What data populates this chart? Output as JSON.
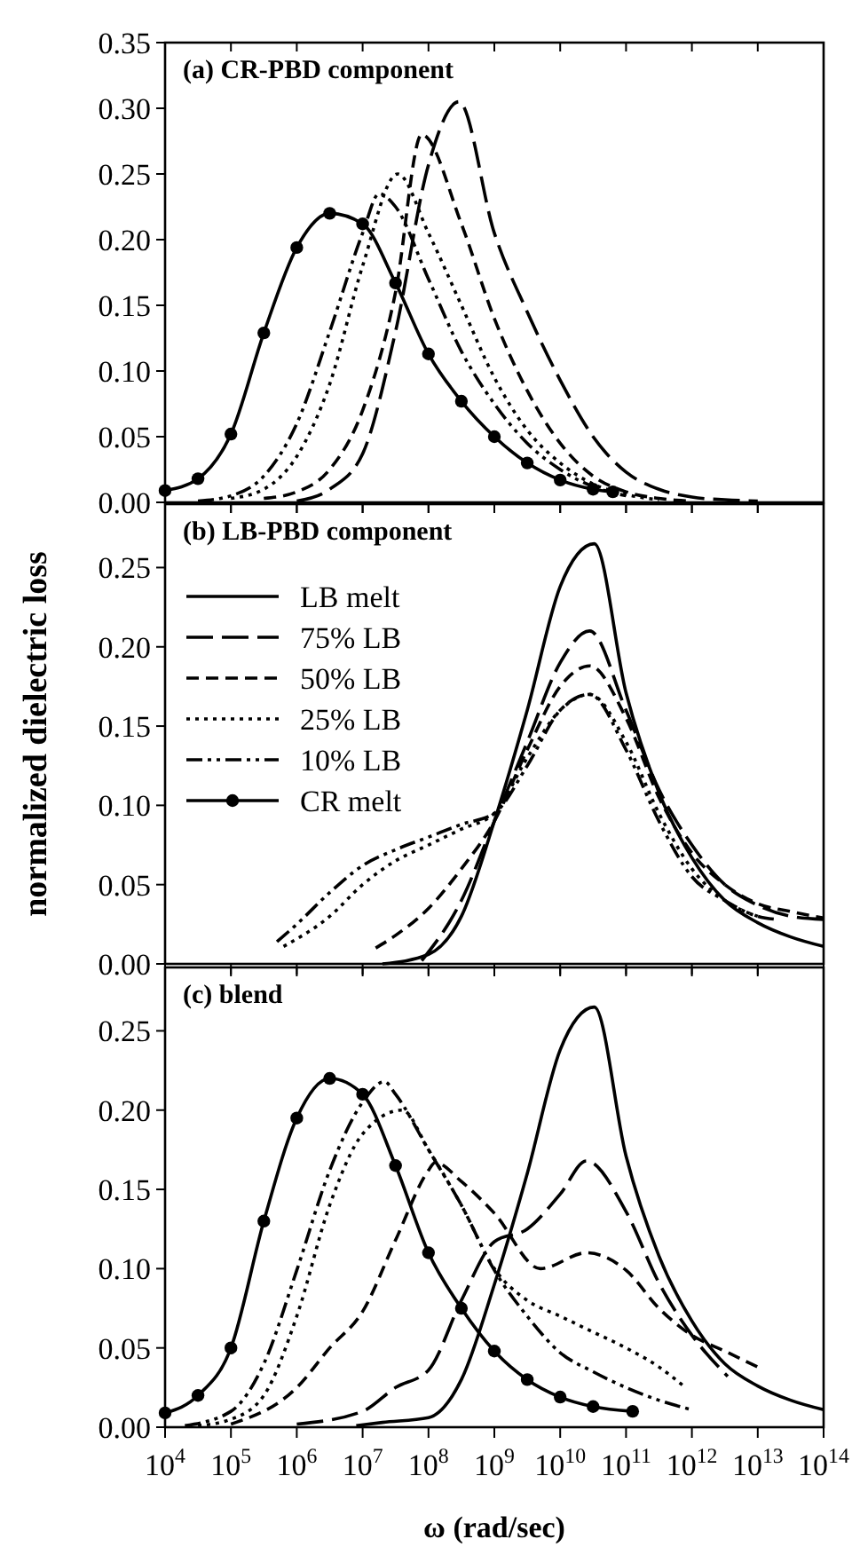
{
  "chart_data": [
    {
      "type": "line",
      "title": "(a) CR-PBD component",
      "log": "x",
      "xlim": [
        10000.0,
        100000000000000.0
      ],
      "ylim": [
        0,
        0.35
      ],
      "xticks": [
        {
          "value": 10000.0,
          "label": null
        },
        {
          "value": 100000.0,
          "label": null
        },
        {
          "value": 1000000.0,
          "label": null
        },
        {
          "value": 10000000.0,
          "label": null
        },
        {
          "value": 100000000.0,
          "label": null
        },
        {
          "value": 1000000000.0,
          "label": null
        },
        {
          "value": 10000000000.0,
          "label": null
        },
        {
          "value": 100000000000.0,
          "label": null
        },
        {
          "value": 1000000000000.0,
          "label": null
        },
        {
          "value": 10000000000000.0,
          "label": null
        },
        {
          "value": 100000000000000.0,
          "label": null
        }
      ],
      "yticks": [
        {
          "value": 0,
          "label": "0.00"
        },
        {
          "value": 0.05,
          "label": "0.05"
        },
        {
          "value": 0.1,
          "label": "0.10"
        },
        {
          "value": 0.15,
          "label": "0.15"
        },
        {
          "value": 0.2,
          "label": "0.20"
        },
        {
          "value": 0.25,
          "label": "0.25"
        },
        {
          "value": 0.3,
          "label": "0.30"
        },
        {
          "value": 0.35,
          "label": "0.35"
        }
      ],
      "tick_labels": "y",
      "grid": false,
      "legend": false,
      "series": [
        {
          "color": "#000000",
          "line_style": "solid",
          "marker": "circle",
          "x": [
            10000.0,
            31600.0,
            100000.0,
            316000.0,
            1000000.0,
            3160000.0,
            10000000.0,
            31600000.0,
            100000000.0,
            316000000.0,
            1000000000.0,
            3160000000.0,
            10000000000.0,
            31600000000.0,
            63000000000.0
          ],
          "values": [
            0.009,
            0.018,
            0.052,
            0.129,
            0.194,
            0.22,
            0.212,
            0.167,
            0.113,
            0.077,
            0.05,
            0.03,
            0.017,
            0.01,
            0.008
          ]
        },
        {
          "color": "#000000",
          "line_style": "dashdot",
          "marker": "none",
          "x": [
            31600.0,
            100000.0,
            316000.0,
            1000000.0,
            3160000.0,
            10000000.0,
            17800000.0,
            31600000.0,
            100000000.0,
            316000000.0,
            1000000000.0,
            3160000000.0,
            10000000000.0,
            31600000000.0,
            100000000000.0
          ],
          "values": [
            0.001,
            0.005,
            0.02,
            0.06,
            0.13,
            0.205,
            0.235,
            0.225,
            0.17,
            0.115,
            0.075,
            0.045,
            0.025,
            0.012,
            0.005
          ]
        },
        {
          "color": "#000000",
          "line_style": "dotted",
          "marker": "none",
          "x": [
            100000.0,
            316000.0,
            1000000.0,
            3160000.0,
            10000000.0,
            34000000.0,
            100000000.0,
            316000000.0,
            1000000000.0,
            3160000000.0,
            10000000000.0,
            31600000000.0,
            100000000000.0,
            316000000000.0
          ],
          "values": [
            0.003,
            0.01,
            0.035,
            0.09,
            0.18,
            0.25,
            0.205,
            0.15,
            0.095,
            0.055,
            0.03,
            0.014,
            0.006,
            0.002
          ]
        },
        {
          "color": "#000000",
          "line_style": "dashed",
          "marker": "none",
          "x": [
            316000.0,
            1000000.0,
            3160000.0,
            10000000.0,
            31600000.0,
            79000000.0,
            316000000.0,
            1000000000.0,
            3160000000.0,
            10000000000.0,
            31600000000.0,
            100000000000.0,
            316000000000.0,
            1000000000000.0
          ],
          "values": [
            0.003,
            0.008,
            0.025,
            0.07,
            0.16,
            0.28,
            0.212,
            0.14,
            0.085,
            0.045,
            0.02,
            0.008,
            0.003,
            0.001
          ]
        },
        {
          "color": "#000000",
          "line_style": "longdash",
          "marker": "none",
          "x": [
            1000000.0,
            3160000.0,
            10000000.0,
            31600000.0,
            100000000.0,
            290000000.0,
            1000000000.0,
            3160000000.0,
            10000000000.0,
            31600000000.0,
            100000000000.0,
            316000000000.0,
            1000000000000.0,
            3160000000000.0,
            10000000000000.0
          ],
          "values": [
            0.001,
            0.01,
            0.037,
            0.13,
            0.257,
            0.305,
            0.205,
            0.145,
            0.093,
            0.05,
            0.023,
            0.01,
            0.004,
            0.002,
            0.001
          ]
        }
      ]
    },
    {
      "type": "line",
      "title": "(b) LB-PBD component",
      "ylabel": "normalized dielectric loss",
      "log": "x",
      "xlim": [
        10000.0,
        100000000000000.0
      ],
      "ylim": [
        0,
        0.29
      ],
      "xticks": [
        {
          "value": 10000.0,
          "label": null
        },
        {
          "value": 100000.0,
          "label": null
        },
        {
          "value": 1000000.0,
          "label": null
        },
        {
          "value": 10000000.0,
          "label": null
        },
        {
          "value": 100000000.0,
          "label": null
        },
        {
          "value": 1000000000.0,
          "label": null
        },
        {
          "value": 10000000000.0,
          "label": null
        },
        {
          "value": 100000000000.0,
          "label": null
        },
        {
          "value": 1000000000000.0,
          "label": null
        },
        {
          "value": 10000000000000.0,
          "label": null
        },
        {
          "value": 100000000000000.0,
          "label": null
        }
      ],
      "yticks": [
        {
          "value": 0,
          "label": "0.00"
        },
        {
          "value": 0.05,
          "label": "0.05"
        },
        {
          "value": 0.1,
          "label": "0.10"
        },
        {
          "value": 0.15,
          "label": "0.15"
        },
        {
          "value": 0.2,
          "label": "0.20"
        },
        {
          "value": 0.25,
          "label": "0.25"
        }
      ],
      "tick_labels": "y",
      "grid": false,
      "legend": "top left",
      "series": [
        {
          "name": "LB melt",
          "color": "#000000",
          "line_style": "solid",
          "marker": "none",
          "x": [
            20000000.0,
            100000000.0,
            316000000.0,
            1000000000.0,
            3160000000.0,
            10000000000.0,
            33000000000.0,
            100000000000.0,
            316000000000.0,
            1000000000000.0,
            3160000000000.0,
            10000000000000.0,
            31600000000000.0,
            100000000000000.0
          ],
          "values": [
            0,
            0.006,
            0.03,
            0.09,
            0.16,
            0.238,
            0.265,
            0.171,
            0.108,
            0.067,
            0.04,
            0.026,
            0.017,
            0.011
          ]
        },
        {
          "name": "75% LB",
          "color": "#000000",
          "line_style": "longdash",
          "marker": "none",
          "x": [
            79000000.0,
            316000000.0,
            1000000000.0,
            3160000000.0,
            10000000000.0,
            28000000000.0,
            100000000000.0,
            316000000000.0,
            1000000000000.0,
            3160000000000.0,
            10000000000000.0,
            31600000000000.0,
            100000000000000.0
          ],
          "values": [
            0.002,
            0.04,
            0.09,
            0.14,
            0.19,
            0.21,
            0.16,
            0.11,
            0.075,
            0.05,
            0.037,
            0.03,
            0.028
          ]
        },
        {
          "name": "50% LB",
          "color": "#000000",
          "line_style": "dashed",
          "marker": "none",
          "x": [
            15800000.0,
            31600000.0,
            100000000.0,
            316000000.0,
            1000000000.0,
            3160000000.0,
            10000000000.0,
            28000000000.0,
            100000000000.0,
            316000000000.0,
            1000000000000.0,
            3160000000000.0,
            10000000000000.0,
            31600000000000.0,
            100000000000000.0
          ],
          "values": [
            0.01,
            0.018,
            0.035,
            0.06,
            0.09,
            0.135,
            0.175,
            0.188,
            0.155,
            0.105,
            0.07,
            0.05,
            0.038,
            0.033,
            0.029
          ]
        },
        {
          "name": "25% LB",
          "color": "#000000",
          "line_style": "dotted",
          "marker": "none",
          "x": [
            630000.0,
            3160000.0,
            10000000.0,
            31600000.0,
            100000000.0,
            316000000.0,
            1000000000.0,
            3160000000.0,
            10000000000.0,
            28000000000.0,
            100000000000.0,
            316000000000.0,
            1000000000000.0,
            3160000000000.0,
            10000000000000.0
          ],
          "values": [
            0.011,
            0.03,
            0.05,
            0.065,
            0.075,
            0.085,
            0.095,
            0.13,
            0.16,
            0.17,
            0.14,
            0.095,
            0.06,
            0.04,
            0.03
          ]
        },
        {
          "name": "10% LB",
          "color": "#000000",
          "line_style": "dashdot",
          "marker": "none",
          "x": [
            500000.0,
            1000000.0,
            3160000.0,
            10000000.0,
            31600000.0,
            100000000.0,
            316000000.0,
            1000000000.0,
            3160000000.0,
            10000000000.0,
            28000000000.0,
            100000000000.0,
            316000000000.0,
            1000000000000.0,
            3160000000000.0,
            10000000000000.0,
            20000000000000.0
          ],
          "values": [
            0.014,
            0.025,
            0.045,
            0.062,
            0.072,
            0.08,
            0.088,
            0.095,
            0.125,
            0.16,
            0.17,
            0.135,
            0.09,
            0.055,
            0.04,
            0.03,
            0.028
          ]
        },
        {
          "name": "CR melt",
          "color": "#000000",
          "line_style": "solid",
          "marker": "circle"
        }
      ]
    },
    {
      "type": "line",
      "title": "(c) blend",
      "xlabel": "ω (rad/sec)",
      "log": "x",
      "xlim": [
        10000.0,
        100000000000000.0
      ],
      "ylim": [
        0,
        0.29
      ],
      "xticks": [
        {
          "value": 10000.0,
          "label": "10$^{4}$"
        },
        {
          "value": 100000.0,
          "label": "10$^{5}$"
        },
        {
          "value": 1000000.0,
          "label": "10$^{6}$"
        },
        {
          "value": 10000000.0,
          "label": "10$^{7}$"
        },
        {
          "value": 100000000.0,
          "label": "10$^{8}$"
        },
        {
          "value": 1000000000.0,
          "label": "10$^{9}$"
        },
        {
          "value": 10000000000.0,
          "label": "10$^{10}$"
        },
        {
          "value": 100000000000.0,
          "label": "10$^{11}$"
        },
        {
          "value": 1000000000000.0,
          "label": "10$^{12}$"
        },
        {
          "value": 10000000000000.0,
          "label": "10$^{13}$"
        },
        {
          "value": 100000000000000.0,
          "label": "10$^{14}$"
        }
      ],
      "yticks": [
        {
          "value": 0,
          "label": "0.00"
        },
        {
          "value": 0.05,
          "label": "0.05"
        },
        {
          "value": 0.1,
          "label": "0.10"
        },
        {
          "value": 0.15,
          "label": "0.15"
        },
        {
          "value": 0.2,
          "label": "0.20"
        },
        {
          "value": 0.25,
          "label": "0.25"
        }
      ],
      "grid": false,
      "legend": false,
      "series": [
        {
          "color": "#000000",
          "line_style": "solid",
          "marker": "none",
          "x": [
            8000000.0,
            20000000.0,
            100000000.0,
            316000000.0,
            1000000000.0,
            3160000000.0,
            10000000000.0,
            33000000000.0,
            100000000000.0,
            316000000000.0,
            1000000000000.0,
            3160000000000.0,
            10000000000000.0,
            31600000000000.0,
            100000000000000.0
          ],
          "values": [
            0.001,
            0.003,
            0.006,
            0.03,
            0.09,
            0.16,
            0.238,
            0.265,
            0.171,
            0.108,
            0.067,
            0.04,
            0.026,
            0.017,
            0.011
          ]
        },
        {
          "color": "#000000",
          "line_style": "longdash",
          "marker": "none",
          "x": [
            1000000.0,
            10000000.0,
            31600000.0,
            100000000.0,
            316000000.0,
            1000000000.0,
            3160000000.0,
            10000000000.0,
            25000000000.0,
            100000000000.0,
            316000000000.0,
            1000000000000.0,
            3500000000000.0
          ],
          "values": [
            0.002,
            0.01,
            0.025,
            0.036,
            0.08,
            0.117,
            0.125,
            0.147,
            0.168,
            0.136,
            0.091,
            0.058,
            0.032
          ]
        },
        {
          "color": "#000000",
          "line_style": "dashed",
          "marker": "none",
          "x": [
            100000.0,
            1000000.0,
            3160000.0,
            10000000.0,
            31600000.0,
            100000000.0,
            126000000.0,
            316000000.0,
            1000000000.0,
            5000000000.0,
            25000000000.0,
            100000000000.0,
            316000000000.0,
            1000000000000.0,
            3160000000000.0,
            10000000000000.0
          ],
          "values": [
            0.002,
            0.025,
            0.05,
            0.073,
            0.118,
            0.162,
            0.167,
            0.155,
            0.135,
            0.1,
            0.11,
            0.099,
            0.075,
            0.058,
            0.048,
            0.038
          ]
        },
        {
          "color": "#000000",
          "line_style": "dotted",
          "marker": "none",
          "x": [
            31600.0,
            100000.0,
            316000.0,
            1000000.0,
            3160000.0,
            10000000.0,
            40000000.0,
            100000000.0,
            316000000.0,
            1000000000.0,
            3160000000.0,
            10000000000.0,
            31600000000.0,
            100000000000.0,
            316000000000.0,
            800000000000.0
          ],
          "values": [
            0.001,
            0.005,
            0.02,
            0.07,
            0.14,
            0.185,
            0.2,
            0.175,
            0.14,
            0.1,
            0.08,
            0.07,
            0.06,
            0.05,
            0.038,
            0.025
          ]
        },
        {
          "color": "#000000",
          "line_style": "dashdot",
          "marker": "none",
          "x": [
            20000.0,
            100000.0,
            316000.0,
            1000000.0,
            3160000.0,
            10000000.0,
            21400000.0,
            31600000.0,
            100000000.0,
            316000000.0,
            1000000000.0,
            3160000000.0,
            10000000000.0,
            31600000000.0,
            100000000000.0,
            316000000000.0,
            1000000000000.0
          ],
          "values": [
            0.001,
            0.01,
            0.04,
            0.099,
            0.162,
            0.205,
            0.218,
            0.21,
            0.175,
            0.14,
            0.099,
            0.07,
            0.047,
            0.035,
            0.025,
            0.017,
            0.011
          ]
        },
        {
          "color": "#000000",
          "line_style": "solid",
          "marker": "circle",
          "x": [
            10000.0,
            31600.0,
            100000.0,
            316000.0,
            1000000.0,
            3160000.0,
            10000000.0,
            31600000.0,
            100000000.0,
            316000000.0,
            1000000000.0,
            3160000000.0,
            10000000000.0,
            31600000000.0,
            126000000000.0
          ],
          "values": [
            0.009,
            0.02,
            0.05,
            0.13,
            0.195,
            0.22,
            0.21,
            0.165,
            0.11,
            0.075,
            0.048,
            0.03,
            0.019,
            0.013,
            0.01
          ]
        }
      ]
    }
  ]
}
